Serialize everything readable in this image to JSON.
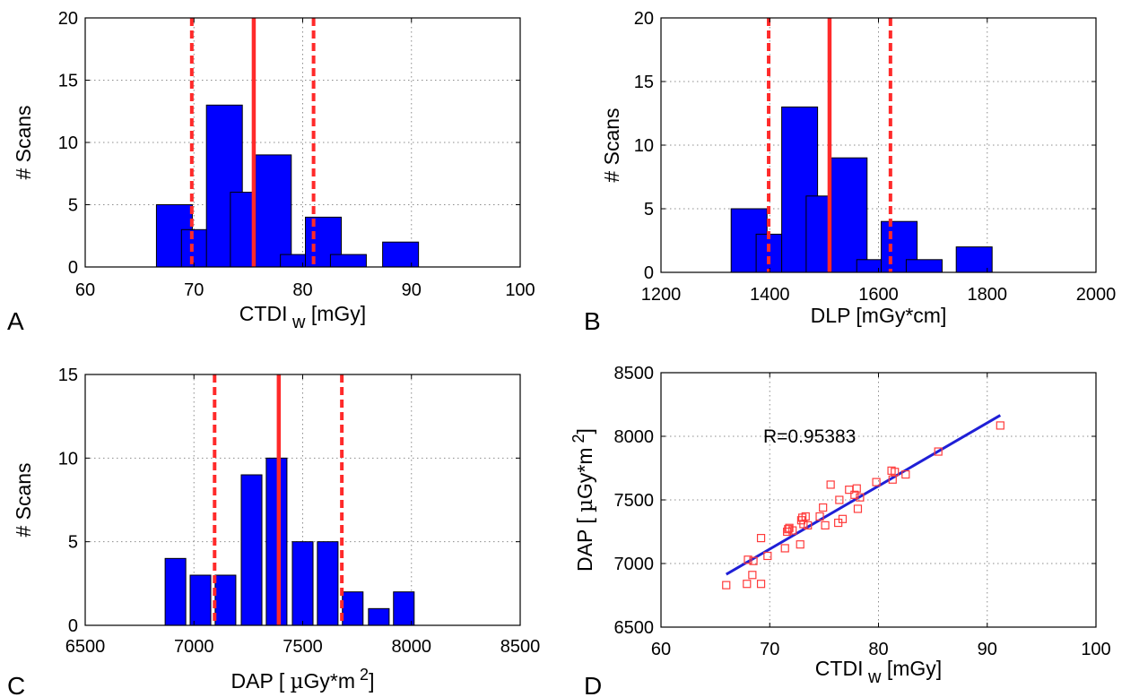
{
  "panels": [
    {
      "panel_label": "A",
      "chart_data": {
        "type": "bar",
        "xlabel": {
          "main": "CTDI",
          "sub": "w",
          "unit": " [mGy]"
        },
        "ylabel": "# Scans",
        "xlim": [
          60,
          100
        ],
        "ylim": [
          0,
          20
        ],
        "xticks": [
          60,
          70,
          80,
          90,
          100
        ],
        "yticks": [
          0,
          5,
          10,
          15,
          20
        ],
        "grid": true,
        "bar_width": 3.3,
        "bars": [
          {
            "x": 68.2,
            "count": 5
          },
          {
            "x": 70.5,
            "count": 3
          },
          {
            "x": 72.8,
            "count": 13
          },
          {
            "x": 75.0,
            "count": 6
          },
          {
            "x": 77.3,
            "count": 9
          },
          {
            "x": 79.6,
            "count": 1
          },
          {
            "x": 81.9,
            "count": 4
          },
          {
            "x": 84.2,
            "count": 1
          },
          {
            "x": 89.0,
            "count": 2
          }
        ],
        "mean_line": 75.5,
        "sd_lines": [
          69.8,
          81.0
        ]
      }
    },
    {
      "panel_label": "B",
      "chart_data": {
        "type": "bar",
        "xlabel": {
          "main": "DLP [mGy*cm]"
        },
        "ylabel": "# Scans",
        "xlim": [
          1200,
          2000
        ],
        "ylim": [
          0,
          20
        ],
        "xticks": [
          1200,
          1400,
          1600,
          1800,
          2000
        ],
        "yticks": [
          0,
          5,
          10,
          15,
          20
        ],
        "grid": true,
        "bar_width": 66,
        "bars": [
          {
            "x": 1362,
            "count": 5
          },
          {
            "x": 1408,
            "count": 3
          },
          {
            "x": 1455,
            "count": 13
          },
          {
            "x": 1500,
            "count": 6
          },
          {
            "x": 1546,
            "count": 9
          },
          {
            "x": 1593,
            "count": 1
          },
          {
            "x": 1638,
            "count": 4
          },
          {
            "x": 1684,
            "count": 1
          },
          {
            "x": 1776,
            "count": 2
          }
        ],
        "mean_line": 1510,
        "sd_lines": [
          1398,
          1622
        ]
      }
    },
    {
      "panel_label": "C",
      "chart_data": {
        "type": "bar",
        "xlabel": {
          "main": "DAP [ ",
          "mu": "µ",
          "rest": "Gy*m",
          "sup": "2",
          "close": "]"
        },
        "ylabel": "# Scans",
        "xlim": [
          6500,
          8500
        ],
        "ylim": [
          0,
          15
        ],
        "xticks": [
          6500,
          7000,
          7500,
          8000,
          8500
        ],
        "yticks": [
          0,
          5,
          10,
          15
        ],
        "grid": true,
        "bar_width": 95,
        "bars": [
          {
            "x": 6915,
            "count": 4
          },
          {
            "x": 7030,
            "count": 3
          },
          {
            "x": 7145,
            "count": 3
          },
          {
            "x": 7265,
            "count": 9
          },
          {
            "x": 7380,
            "count": 10
          },
          {
            "x": 7500,
            "count": 5
          },
          {
            "x": 7615,
            "count": 5
          },
          {
            "x": 7730,
            "count": 2
          },
          {
            "x": 7850,
            "count": 1
          },
          {
            "x": 7965,
            "count": 2
          }
        ],
        "mean_line": 7390,
        "sd_lines": [
          7095,
          7680
        ]
      }
    },
    {
      "panel_label": "D",
      "chart_data": {
        "type": "scatter",
        "xlabel": {
          "main": "CTDI",
          "sub": "w",
          "unit": " [mGy]"
        },
        "ylabel": {
          "main": "DAP [ ",
          "mu": "µ",
          "rest": "Gy*m",
          "sup": "2",
          "close": "]"
        },
        "xlim": [
          60,
          100
        ],
        "ylim": [
          6500,
          8500
        ],
        "xticks": [
          60,
          70,
          80,
          90,
          100
        ],
        "yticks": [
          6500,
          7000,
          7500,
          8000,
          8500
        ],
        "grid": true,
        "annotation": "R=0.95383",
        "annotation_at": [
          69.4,
          8000
        ],
        "fit_line": [
          [
            66,
            6915
          ],
          [
            91.2,
            8165
          ]
        ],
        "points": [
          [
            66.0,
            6830
          ],
          [
            67.9,
            6840
          ],
          [
            68.0,
            7030
          ],
          [
            68.4,
            6910
          ],
          [
            68.5,
            7020
          ],
          [
            69.2,
            6840
          ],
          [
            69.2,
            7200
          ],
          [
            69.8,
            7060
          ],
          [
            71.4,
            7120
          ],
          [
            71.6,
            7250
          ],
          [
            71.7,
            7270
          ],
          [
            71.8,
            7280
          ],
          [
            72.1,
            7260
          ],
          [
            72.8,
            7150
          ],
          [
            72.9,
            7340
          ],
          [
            73.0,
            7360
          ],
          [
            73.1,
            7310
          ],
          [
            73.3,
            7370
          ],
          [
            73.5,
            7300
          ],
          [
            74.6,
            7370
          ],
          [
            74.9,
            7440
          ],
          [
            75.1,
            7300
          ],
          [
            75.6,
            7620
          ],
          [
            76.3,
            7320
          ],
          [
            76.4,
            7500
          ],
          [
            76.7,
            7350
          ],
          [
            77.3,
            7580
          ],
          [
            77.8,
            7540
          ],
          [
            78.0,
            7590
          ],
          [
            78.1,
            7430
          ],
          [
            78.3,
            7520
          ],
          [
            79.8,
            7640
          ],
          [
            81.2,
            7730
          ],
          [
            81.3,
            7660
          ],
          [
            81.5,
            7720
          ],
          [
            82.5,
            7700
          ],
          [
            85.5,
            7880
          ],
          [
            91.2,
            8085
          ]
        ]
      }
    }
  ],
  "colors": {
    "bar_fill": "#0000ff",
    "bar_stroke": "#000000",
    "mean_line": "#ff2a2a",
    "sd_line": "#ff2a2a",
    "scatter_marker": "#ff3b3b",
    "fit_line": "#1f1fd6"
  }
}
